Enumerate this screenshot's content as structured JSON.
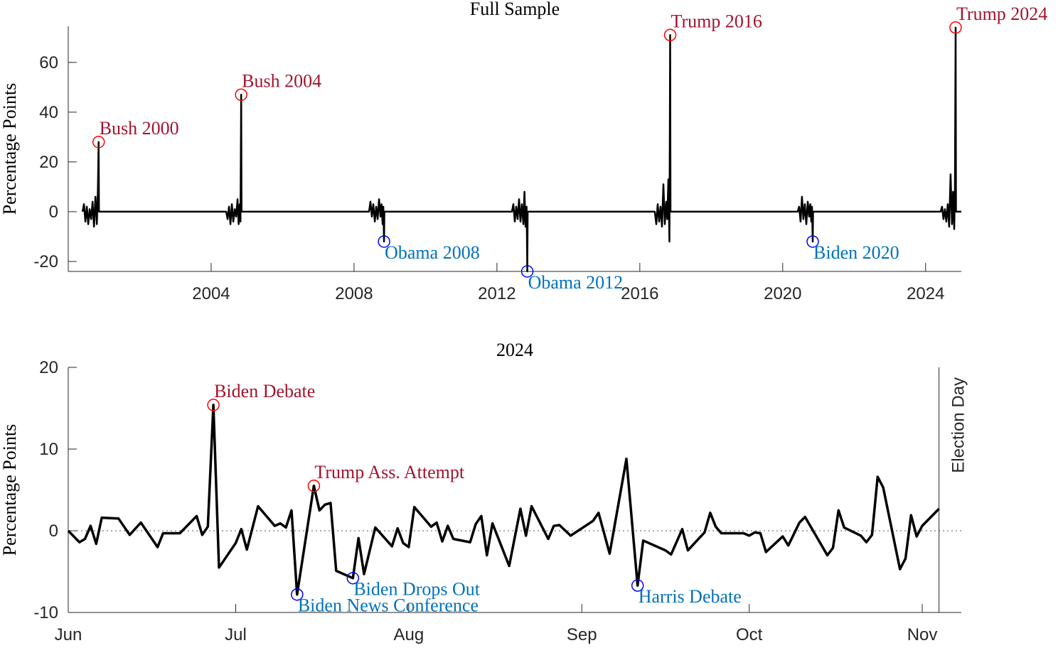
{
  "chart_data": [
    {
      "type": "line",
      "title": "Full Sample",
      "y_label": "Percentage Points",
      "color": "#000000",
      "x": [
        2000.4,
        2000.44,
        2000.48,
        2000.52,
        2000.56,
        2000.6,
        2000.64,
        2000.68,
        2000.72,
        2000.76,
        2000.8,
        2000.83,
        2000.85,
        2000.86,
        2004.42,
        2004.46,
        2004.5,
        2004.54,
        2004.58,
        2004.62,
        2004.66,
        2004.7,
        2004.74,
        2004.77,
        2004.8,
        2004.82,
        2004.84,
        2004.85,
        2008.42,
        2008.46,
        2008.5,
        2008.54,
        2008.58,
        2008.62,
        2008.66,
        2008.7,
        2008.74,
        2008.77,
        2008.8,
        2008.82,
        2008.84,
        2008.85,
        2012.42,
        2012.46,
        2012.5,
        2012.54,
        2012.58,
        2012.62,
        2012.66,
        2012.7,
        2012.74,
        2012.77,
        2012.8,
        2012.83,
        2012.85,
        2012.86,
        2016.42,
        2016.46,
        2016.5,
        2016.54,
        2016.58,
        2016.62,
        2016.66,
        2016.7,
        2016.74,
        2016.77,
        2016.8,
        2016.83,
        2016.85,
        2016.86,
        2020.42,
        2020.46,
        2020.5,
        2020.54,
        2020.58,
        2020.62,
        2020.66,
        2020.7,
        2020.74,
        2020.77,
        2020.8,
        2020.82,
        2020.84,
        2020.85,
        2024.42,
        2024.46,
        2024.5,
        2024.54,
        2024.58,
        2024.62,
        2024.66,
        2024.7,
        2024.74,
        2024.77,
        2024.8,
        2024.82,
        2024.84,
        2024.85,
        2025.0
      ],
      "values": [
        0,
        3,
        -4,
        2,
        -5,
        1,
        -3,
        4,
        -6,
        6,
        -5,
        9,
        28,
        0,
        0,
        -3,
        2,
        -5,
        3,
        -4,
        1,
        -2,
        5,
        -5,
        3,
        -4,
        47,
        0,
        0,
        4,
        -2,
        3,
        -4,
        2,
        -3,
        5,
        -2,
        3,
        -5,
        2,
        -12,
        0,
        0,
        3,
        -4,
        2,
        -3,
        5,
        -4,
        3,
        -5,
        8,
        -6,
        2,
        -24,
        0,
        0,
        -5,
        3,
        -4,
        2,
        -6,
        11,
        -5,
        4,
        -3,
        13,
        -12,
        71,
        0,
        0,
        2,
        -4,
        6,
        -3,
        3,
        -5,
        4,
        -2,
        3,
        -4,
        2,
        -12,
        0,
        0,
        2,
        -3,
        1,
        -4,
        3,
        -6,
        15,
        -5,
        8,
        -7,
        9,
        74,
        0,
        0
      ],
      "xlim": [
        2000,
        2025
      ],
      "ylim": [
        -24,
        74.5
      ],
      "xticks": [
        2004,
        2008,
        2012,
        2016,
        2020,
        2024
      ],
      "yticks": [
        -20,
        0,
        20,
        40,
        60
      ],
      "annotations": [
        {
          "text": "Bush 2000",
          "x": 2000.85,
          "y": 28,
          "color": "#a2142f",
          "marker_color": "#ff0000"
        },
        {
          "text": "Bush 2004",
          "x": 2004.84,
          "y": 47,
          "color": "#a2142f",
          "marker_color": "#ff0000"
        },
        {
          "text": "Obama 2008",
          "x": 2008.84,
          "y": -12,
          "color": "#0072bd",
          "marker_color": "#0000ff"
        },
        {
          "text": "Obama 2012",
          "x": 2012.85,
          "y": -24,
          "color": "#0072bd",
          "marker_color": "#0000ff"
        },
        {
          "text": "Trump 2016",
          "x": 2016.85,
          "y": 71,
          "color": "#a2142f",
          "marker_color": "#ff0000"
        },
        {
          "text": "Biden 2020",
          "x": 2020.84,
          "y": -12,
          "color": "#0072bd",
          "marker_color": "#0000ff"
        },
        {
          "text": "Trump 2024",
          "x": 2024.84,
          "y": 74,
          "color": "#a2142f",
          "marker_color": "#ff0000"
        }
      ]
    },
    {
      "type": "line",
      "title": "2024",
      "y_label": "Percentage Points",
      "color": "#000000",
      "x": [
        0,
        2,
        3,
        4,
        5,
        6,
        9,
        11,
        13,
        16,
        17,
        20,
        23,
        24,
        25,
        26,
        27,
        30,
        31,
        32,
        34,
        37,
        38,
        39,
        40,
        41,
        44,
        45,
        46,
        47,
        48,
        51,
        52,
        53,
        55,
        58,
        59,
        60,
        61,
        62,
        65,
        66,
        67,
        68,
        69,
        72,
        73,
        74,
        75,
        76,
        79,
        81,
        82,
        83,
        86,
        87,
        88,
        90,
        94,
        95,
        97,
        100,
        102,
        103,
        107,
        108,
        110,
        111,
        114,
        115,
        116,
        117,
        121,
        122,
        123,
        124,
        125,
        128,
        129,
        131,
        132,
        136,
        137,
        138,
        139,
        142,
        143,
        144,
        145,
        146,
        149,
        150,
        151,
        152,
        153,
        156
      ],
      "values": [
        0,
        -1.4,
        -1,
        0.6,
        -1.6,
        1.6,
        1.5,
        -0.5,
        1,
        -2,
        -0.3,
        -0.3,
        1.8,
        -0.5,
        0.5,
        15.4,
        -4.5,
        -1.5,
        0.2,
        -2.3,
        3,
        0.6,
        0.9,
        0.4,
        2.5,
        -7.8,
        5.5,
        2.5,
        3.2,
        3.4,
        -4.9,
        -5.8,
        -0.9,
        -5.3,
        0.4,
        -1.9,
        0.3,
        -1.5,
        -2,
        2.9,
        0.5,
        1,
        -1.3,
        0.6,
        -1,
        -1.4,
        0.8,
        1.8,
        -3,
        0.9,
        -4.3,
        2.7,
        -0.6,
        3,
        -1,
        0.6,
        0.7,
        -0.6,
        1.2,
        2.2,
        -2.8,
        8.8,
        -6.7,
        -1.2,
        -2.4,
        -2.9,
        0.2,
        -2.4,
        -0.2,
        2.2,
        0.5,
        -0.3,
        -0.3,
        -0.6,
        -0.2,
        -0.3,
        -2.6,
        -0.7,
        -1.8,
        1,
        1.7,
        -3,
        -2.1,
        2.5,
        0.4,
        -0.6,
        -1.4,
        -0.5,
        6.6,
        5.3,
        -4.7,
        -3.4,
        1.9,
        -0.7,
        0.6,
        2.7
      ],
      "xlim": [
        0,
        160
      ],
      "ylim": [
        -10,
        20
      ],
      "xticks": [
        {
          "value": 0,
          "label": "Jun"
        },
        {
          "value": 30,
          "label": "Jul"
        },
        {
          "value": 61,
          "label": "Aug"
        },
        {
          "value": 92,
          "label": "Sep"
        },
        {
          "value": 122,
          "label": "Oct"
        },
        {
          "value": 153,
          "label": "Nov"
        }
      ],
      "yticks": [
        -10,
        0,
        10,
        20
      ],
      "vline": {
        "x": 156,
        "label": "Election Day"
      },
      "annotations": [
        {
          "text": "Biden Debate",
          "x": 26,
          "y": 15.4,
          "color": "#a2142f",
          "marker_color": "#ff0000"
        },
        {
          "text": "Trump Ass. Attempt",
          "x": 44,
          "y": 5.5,
          "color": "#a2142f",
          "marker_color": "#ff0000"
        },
        {
          "text": "Biden News Conference",
          "x": 41,
          "y": -7.8,
          "color": "#0072bd",
          "marker_color": "#0000ff"
        },
        {
          "text": "Biden Drops Out",
          "x": 51,
          "y": -5.8,
          "color": "#0072bd",
          "marker_color": "#0000ff"
        },
        {
          "text": "Harris Debate",
          "x": 102,
          "y": -6.7,
          "color": "#0072bd",
          "marker_color": "#0000ff"
        }
      ]
    }
  ]
}
